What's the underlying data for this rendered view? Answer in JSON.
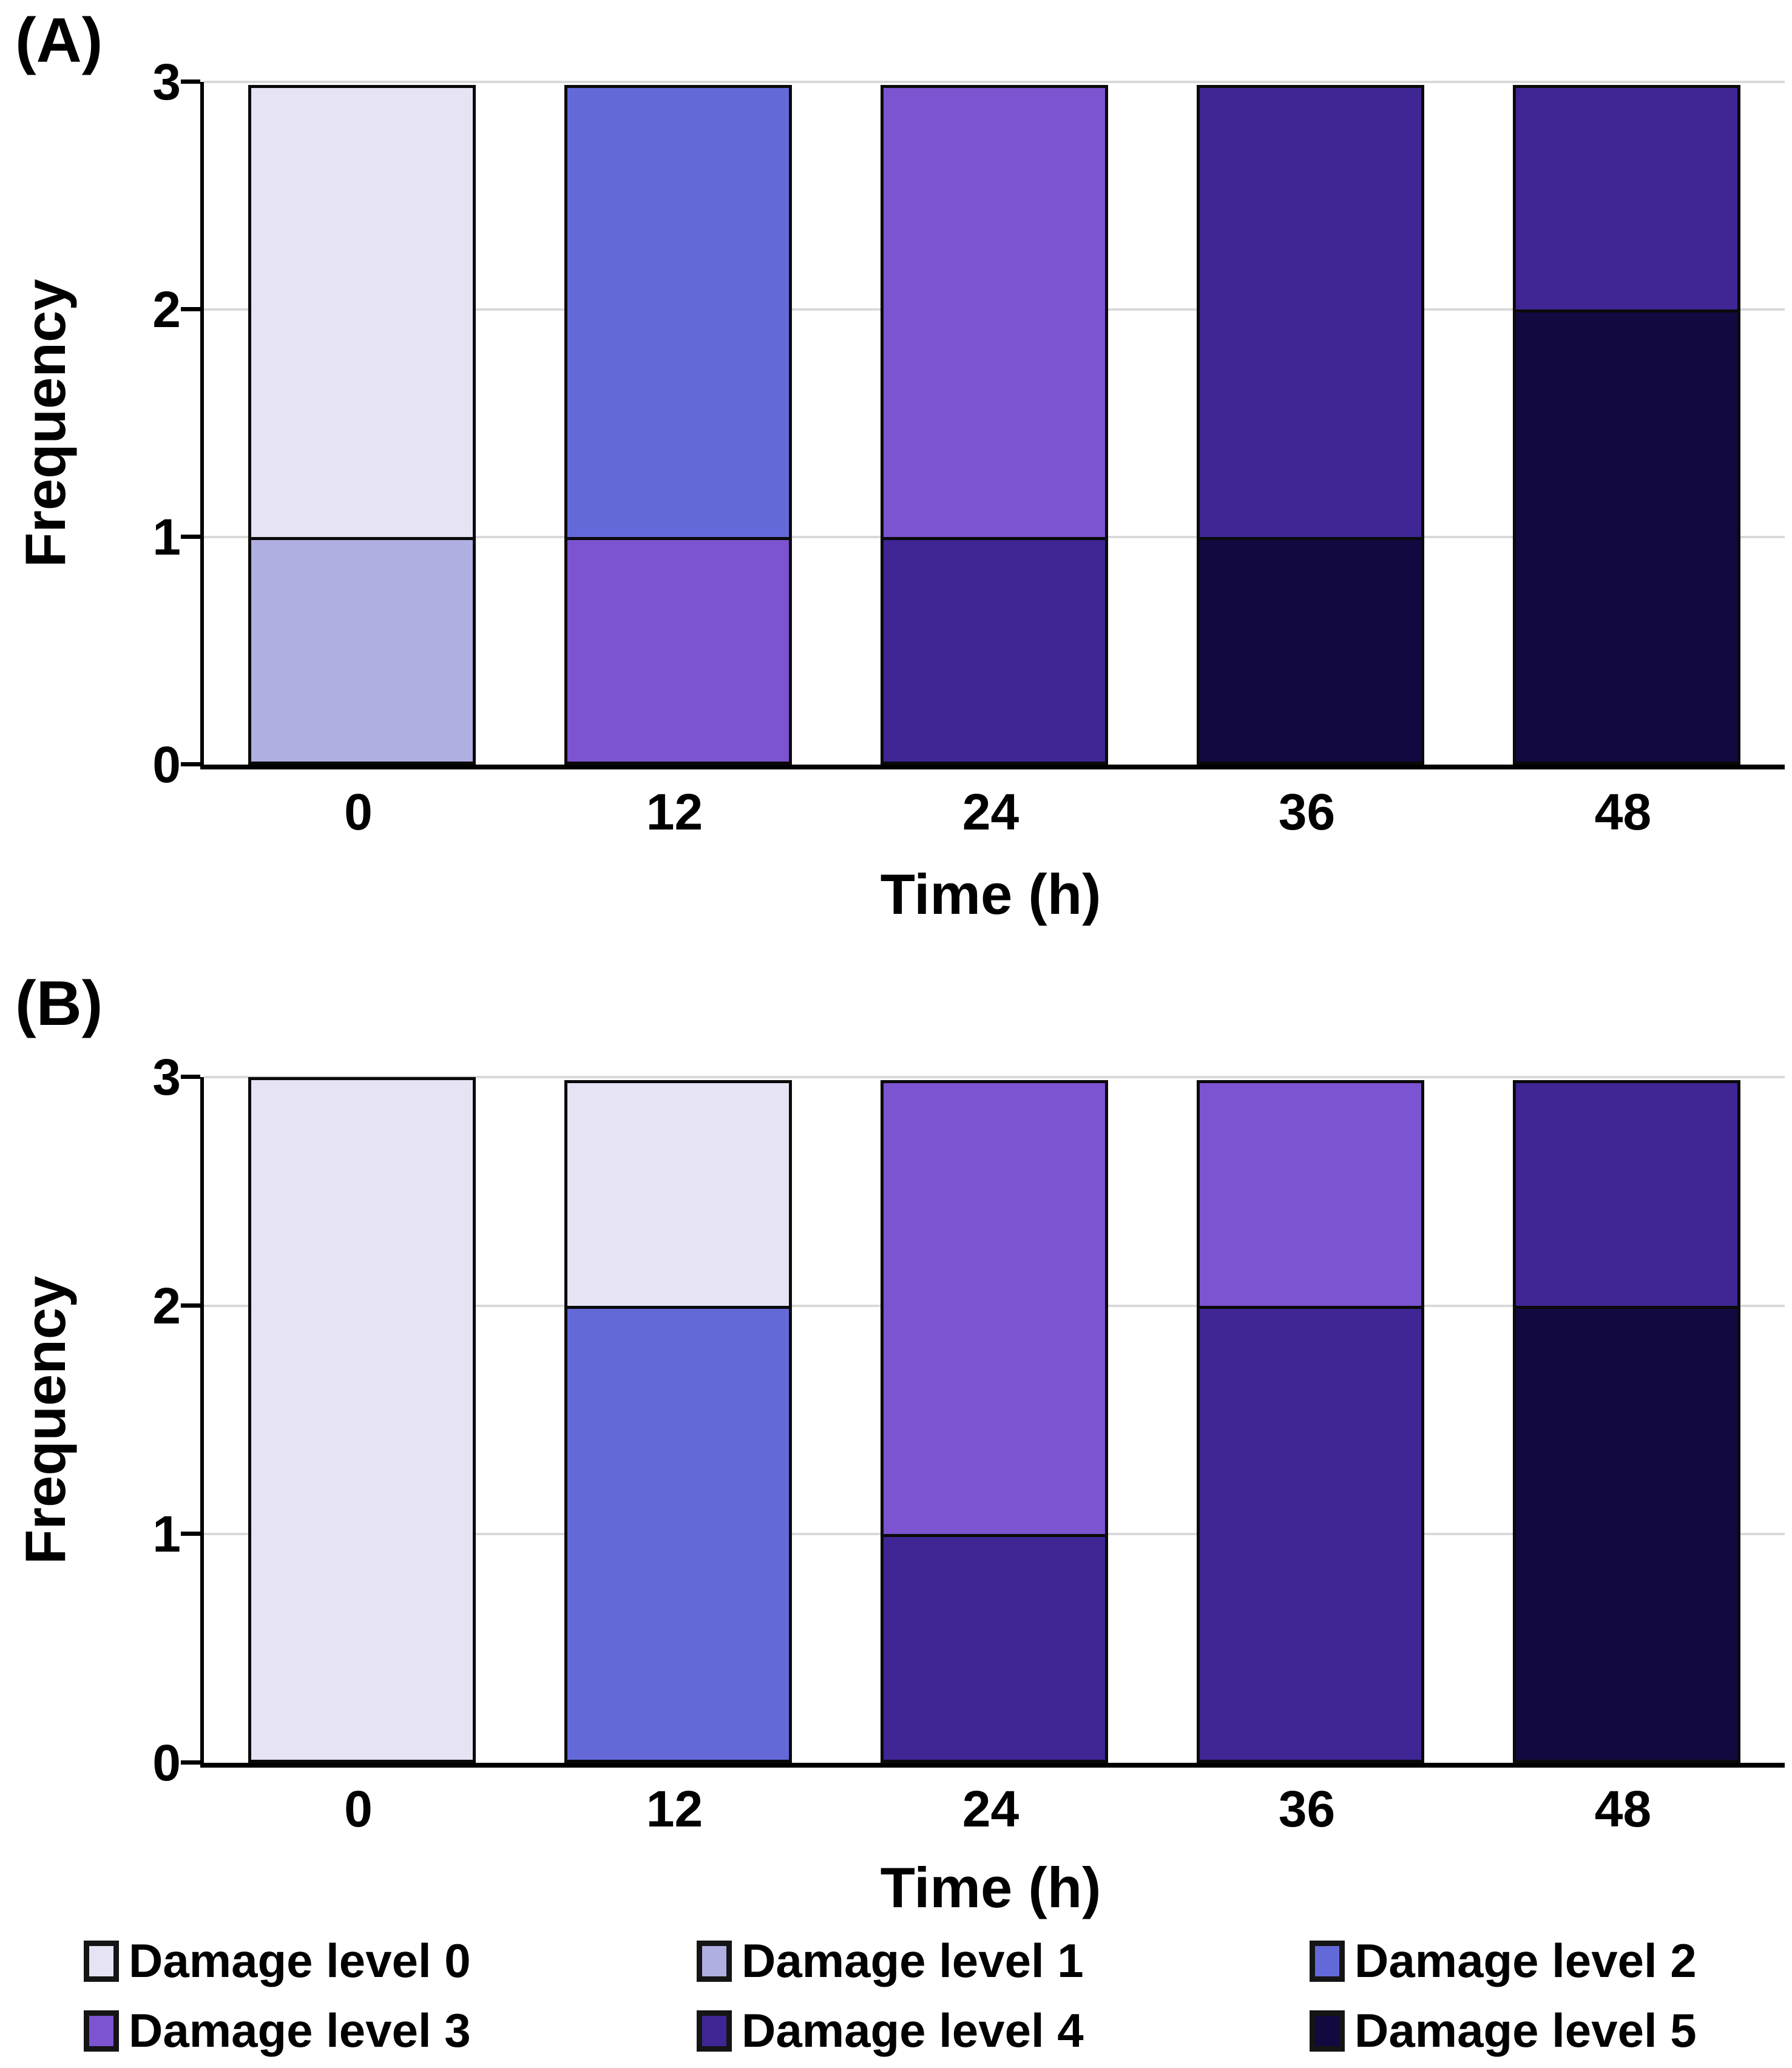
{
  "figure": {
    "background": "#ffffff",
    "gridline_color": "#d9d9d9",
    "axis_color": "#000000",
    "bar_outline_color": "#0a0a0a"
  },
  "legend": {
    "position": "bottom",
    "items": [
      {
        "label": "Damage level 0",
        "color": "#e5e3f4"
      },
      {
        "label": "Damage level 1",
        "color": "#afafe2"
      },
      {
        "label": "Damage level 2",
        "color": "#6469da"
      },
      {
        "label": "Damage level 3",
        "color": "#7c53d0"
      },
      {
        "label": "Damage level 4",
        "color": "#3f2694"
      },
      {
        "label": "Damage level 5",
        "color": "#120940"
      }
    ]
  },
  "chart_data": [
    {
      "type": "bar",
      "stacked": true,
      "panel_label": "(A)",
      "title": "",
      "xlabel": "Time (h)",
      "ylabel": "Frequency",
      "categories": [
        "0",
        "12",
        "24",
        "36",
        "48"
      ],
      "ylim": [
        0,
        3
      ],
      "yticks": [
        0,
        1,
        2,
        3
      ],
      "grid": true,
      "stack_order": "highest-damage-level-at-bottom",
      "series": [
        {
          "name": "Damage level 0",
          "values": [
            2,
            0,
            0,
            0,
            0
          ]
        },
        {
          "name": "Damage level 1",
          "values": [
            1,
            0,
            0,
            0,
            0
          ]
        },
        {
          "name": "Damage level 2",
          "values": [
            0,
            2,
            0,
            0,
            0
          ]
        },
        {
          "name": "Damage level 3",
          "values": [
            0,
            1,
            2,
            0,
            0
          ]
        },
        {
          "name": "Damage level 4",
          "values": [
            0,
            0,
            1,
            2,
            1
          ]
        },
        {
          "name": "Damage level 5",
          "values": [
            0,
            0,
            0,
            1,
            2
          ]
        }
      ]
    },
    {
      "type": "bar",
      "stacked": true,
      "panel_label": "(B)",
      "title": "",
      "xlabel": "Time (h)",
      "ylabel": "Frequency",
      "categories": [
        "0",
        "12",
        "24",
        "36",
        "48"
      ],
      "ylim": [
        0,
        3
      ],
      "yticks": [
        0,
        1,
        2,
        3
      ],
      "grid": true,
      "stack_order": "highest-damage-level-at-bottom",
      "series": [
        {
          "name": "Damage level 0",
          "values": [
            3,
            1,
            0,
            0,
            0
          ]
        },
        {
          "name": "Damage level 1",
          "values": [
            0,
            0,
            0,
            0,
            0
          ]
        },
        {
          "name": "Damage level 2",
          "values": [
            0,
            2,
            0,
            0,
            0
          ]
        },
        {
          "name": "Damage level 3",
          "values": [
            0,
            0,
            2,
            1,
            0
          ]
        },
        {
          "name": "Damage level 4",
          "values": [
            0,
            0,
            1,
            2,
            1
          ]
        },
        {
          "name": "Damage level 5",
          "values": [
            0,
            0,
            0,
            0,
            2
          ]
        }
      ]
    }
  ]
}
